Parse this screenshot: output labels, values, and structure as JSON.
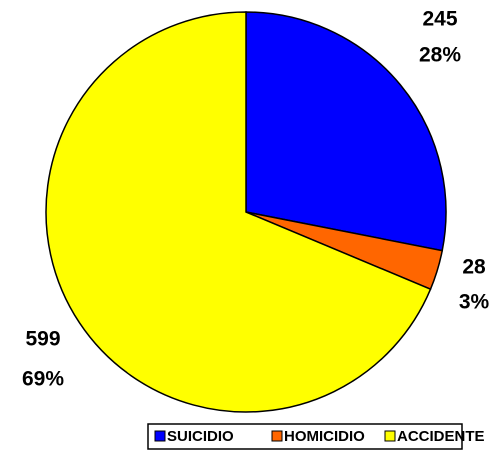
{
  "chart_data": {
    "type": "pie",
    "categories": [
      "SUICIDIO",
      "HOMICIDIO",
      "ACCIDENTE"
    ],
    "values": [
      245,
      28,
      599
    ],
    "percent_labels": [
      "28%",
      "3%",
      "69%"
    ],
    "colors": [
      "#0000ff",
      "#ff6600",
      "#ffff00"
    ],
    "legend": "bottom"
  }
}
